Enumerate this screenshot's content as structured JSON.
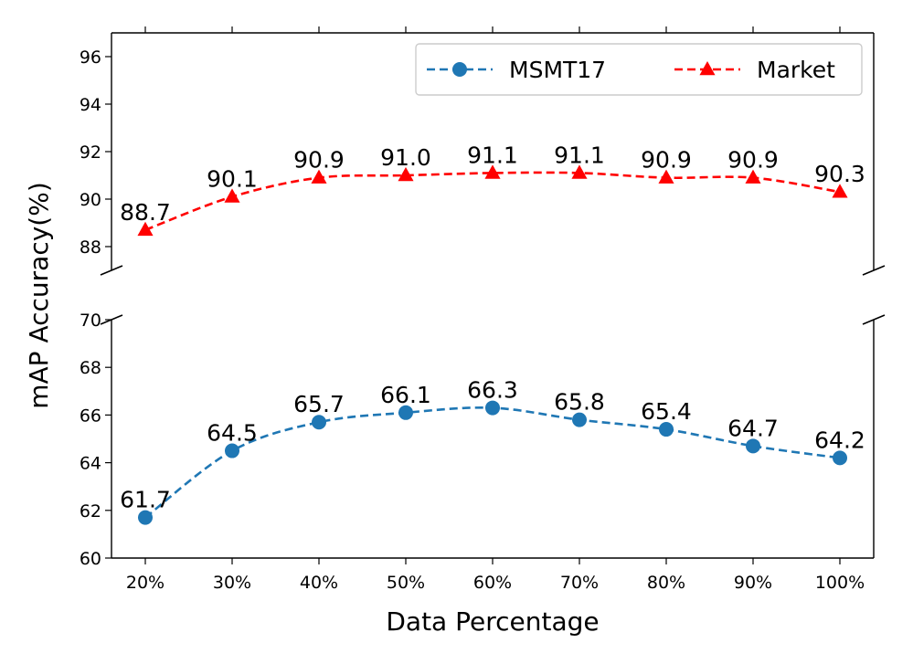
{
  "chart_data": {
    "type": "line",
    "broken_y_axis": true,
    "xlabel": "Data Percentage",
    "ylabel": "mAP Accuracy(%)",
    "categories": [
      "20%",
      "30%",
      "40%",
      "50%",
      "60%",
      "70%",
      "80%",
      "90%",
      "100%"
    ],
    "upper_panel": {
      "ylim": [
        87,
        97
      ],
      "yticks": [
        88,
        90,
        92,
        94,
        96
      ],
      "tick_labels": [
        "88",
        "90",
        "92",
        "94",
        "96"
      ]
    },
    "lower_panel": {
      "ylim": [
        60,
        70
      ],
      "yticks": [
        60,
        62,
        64,
        66,
        68,
        70
      ],
      "tick_labels": [
        "60",
        "62",
        "64",
        "66",
        "68",
        "70"
      ]
    },
    "series": [
      {
        "name": "MSMT17",
        "panel": "lower",
        "color": "#1f77b4",
        "marker": "circle",
        "line_style": "dashed",
        "values": [
          61.7,
          64.5,
          65.7,
          66.1,
          66.3,
          65.8,
          65.4,
          64.7,
          64.2
        ],
        "labels": [
          "61.7",
          "64.5",
          "65.7",
          "66.1",
          "66.3",
          "65.8",
          "65.4",
          "64.7",
          "64.2"
        ]
      },
      {
        "name": "Market",
        "panel": "upper",
        "color": "#ff0000",
        "marker": "triangle",
        "line_style": "dashed",
        "values": [
          88.7,
          90.1,
          90.9,
          91.0,
          91.1,
          91.1,
          90.9,
          90.9,
          90.3
        ],
        "labels": [
          "88.7",
          "90.1",
          "90.9",
          "91.0",
          "91.1",
          "91.1",
          "90.9",
          "90.9",
          "90.3"
        ]
      }
    ],
    "legend": {
      "position": "top-right",
      "columns": 2
    }
  }
}
